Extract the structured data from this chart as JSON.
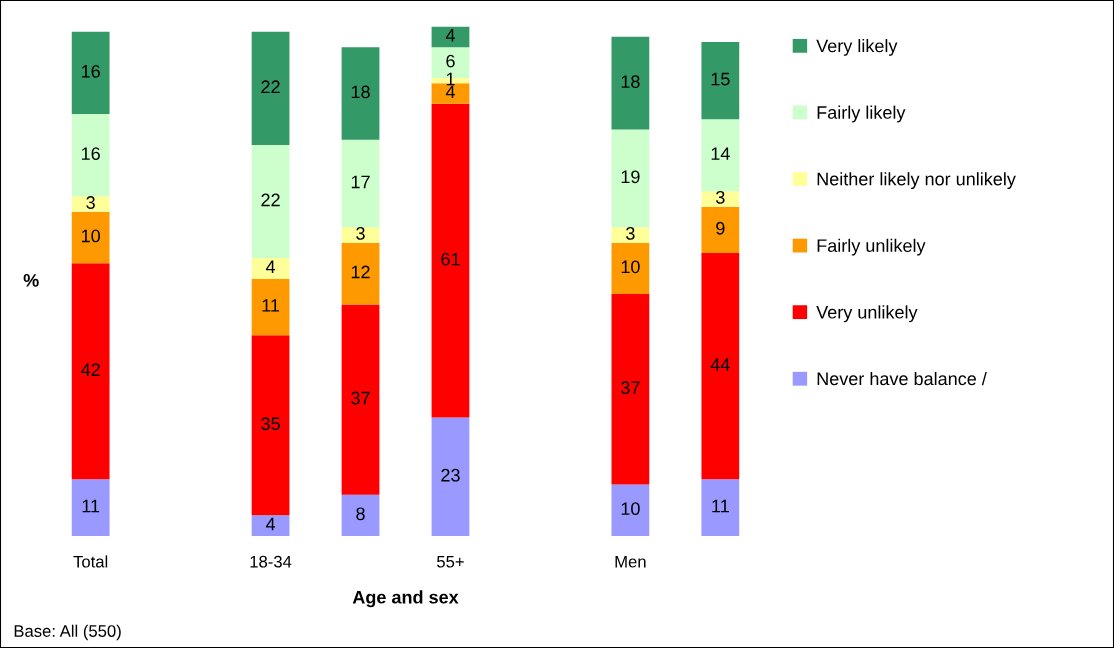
{
  "chart_data": {
    "type": "bar",
    "stacked": true,
    "data_labels": true,
    "legend": "right",
    "tick_labels": "x",
    "ylabel": "%",
    "xlabel": "Age and sex",
    "categories": [
      "Total",
      null,
      "18-34",
      null,
      "55+",
      null,
      "Men",
      null
    ],
    "series": [
      {
        "name": "Never have balance /",
        "color": "#9999ff",
        "values": [
          11,
          null,
          4,
          8,
          23,
          null,
          10,
          11
        ]
      },
      {
        "name": "Very unlikely",
        "color": "#ff0000",
        "values": [
          42,
          null,
          35,
          37,
          61,
          null,
          37,
          44
        ]
      },
      {
        "name": "Fairly unlikely",
        "color": "#ff9900",
        "values": [
          10,
          null,
          11,
          12,
          4,
          null,
          10,
          9
        ]
      },
      {
        "name": "Neither likely nor unlikely",
        "color": "#ffff99",
        "values": [
          3,
          null,
          4,
          3,
          1,
          null,
          3,
          3
        ]
      },
      {
        "name": "Fairly likely",
        "color": "#ccffcc",
        "values": [
          16,
          null,
          22,
          17,
          6,
          null,
          19,
          14
        ]
      },
      {
        "name": "Very likely",
        "color": "#339966",
        "values": [
          16,
          null,
          22,
          18,
          4,
          null,
          18,
          15
        ]
      }
    ],
    "annotations": [
      "Base: All (550)"
    ]
  }
}
